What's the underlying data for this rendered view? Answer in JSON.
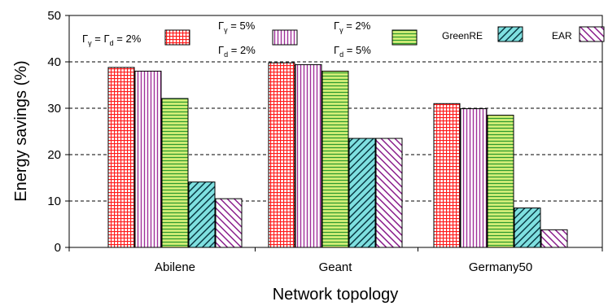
{
  "chart_data": {
    "type": "bar",
    "xlabel": "Network topology",
    "ylabel": "Energy savings (%)",
    "ylim": [
      0,
      50
    ],
    "yticks": [
      0,
      10,
      20,
      30,
      40,
      50
    ],
    "grid": "horizontal dashed",
    "categories": [
      "Abilene",
      "Geant",
      "Germany50"
    ],
    "series": [
      {
        "name": "Γγ = Γd = 2%",
        "legend_parts": [
          {
            "t": "Γ"
          },
          {
            "s": "γ"
          },
          {
            "t": " = Γ"
          },
          {
            "s": "d"
          },
          {
            "t": " = 2%"
          }
        ],
        "values": [
          38.8,
          39.8,
          31.0
        ],
        "color": "#ff2020",
        "pattern": "grid"
      },
      {
        "name": "Γγ = 5% Γd = 2%",
        "legend_line1": [
          {
            "t": "Γ"
          },
          {
            "s": "γ"
          },
          {
            "t": " = 5%"
          }
        ],
        "legend_line2": [
          {
            "t": "Γ"
          },
          {
            "s": "d"
          },
          {
            "t": " = 2%"
          }
        ],
        "values": [
          38.0,
          39.4,
          29.9
        ],
        "color": "#a0309a",
        "pattern": "vertical"
      },
      {
        "name": "Γγ = 2% Γd = 5%",
        "legend_line1": [
          {
            "t": "Γ"
          },
          {
            "s": "γ"
          },
          {
            "t": " = 2%"
          }
        ],
        "legend_line2": [
          {
            "t": "Γ"
          },
          {
            "s": "d"
          },
          {
            "t": " = 5%"
          }
        ],
        "values": [
          32.1,
          38.0,
          28.5
        ],
        "color": "#2e9a2e",
        "bg": "#d8f07a",
        "pattern": "horizontal"
      },
      {
        "name": "GreenRE",
        "values": [
          14.1,
          23.5,
          8.5
        ],
        "color": "#0a3a44",
        "bg": "#7fe0e0",
        "pattern": "diag-down"
      },
      {
        "name": "EAR",
        "values": [
          10.5,
          23.5,
          3.8
        ],
        "color": "#8a1f8c",
        "pattern": "diag-up"
      }
    ]
  }
}
